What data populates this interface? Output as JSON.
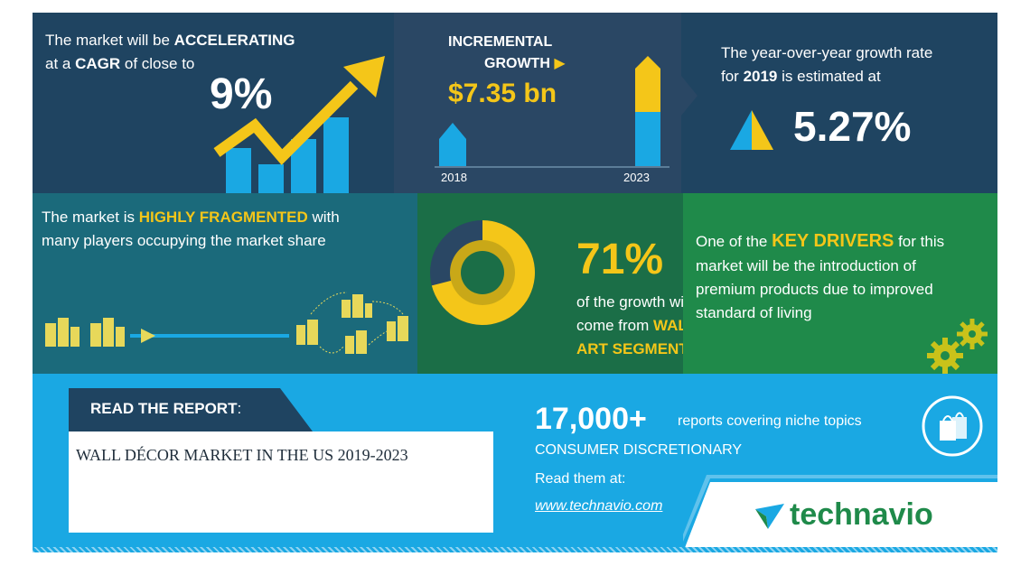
{
  "cagr": {
    "line1_pre": "The market will be ",
    "line1_bold": "ACCELERATING",
    "line2_pre": "at a ",
    "line2_bold": "CAGR",
    "line2_post": " of close to",
    "value": "9%"
  },
  "incremental": {
    "label_line1": "INCREMENTAL",
    "label_line2": "GROWTH",
    "value": "$7.35 bn",
    "year_start": "2018",
    "year_end": "2023"
  },
  "yoy": {
    "line1": "The year-over-year growth rate",
    "line2_pre": "for ",
    "line2_bold": "2019",
    "line2_post": " is estimated at",
    "value": "5.27%"
  },
  "fragmented": {
    "line1_pre": "The market is ",
    "line1_bold": "HIGHLY FRAGMENTED",
    "line1_post": " with",
    "line2": "many players occupying the market share"
  },
  "share": {
    "value": "71%",
    "share_fraction": 0.71,
    "line1": "of the growth will",
    "line2_pre": "come from ",
    "line2_bold": "WALL",
    "line3_bold": "ART SEGMENT"
  },
  "drivers": {
    "line1_pre": "One of the ",
    "line1_bold": "KEY DRIVERS",
    "line1_post": " for this",
    "line2": "market will be the introduction of",
    "line3": "premium products due to improved",
    "line4": "standard of living"
  },
  "report": {
    "heading": "READ THE REPORT",
    "heading_colon": ":",
    "title": "WALL DÉCOR MARKET IN THE US 2019-2023"
  },
  "reports_info": {
    "count": "17,000+",
    "count_caption": "reports covering niche topics",
    "category": "CONSUMER DISCRETIONARY",
    "read_label": "Read them at:",
    "url": "www.technavio.com"
  },
  "brand": {
    "logo_text": "technavio",
    "logo_color": "#1f8a4a",
    "accent_yellow": "#f4c619",
    "accent_blue": "#1aa8e3"
  },
  "icons": [
    "arrow-chart-icon",
    "triangle-growth-icon",
    "buildings-icon",
    "gears-icon",
    "shopping-bags-icon",
    "technavio-logo-icon"
  ]
}
